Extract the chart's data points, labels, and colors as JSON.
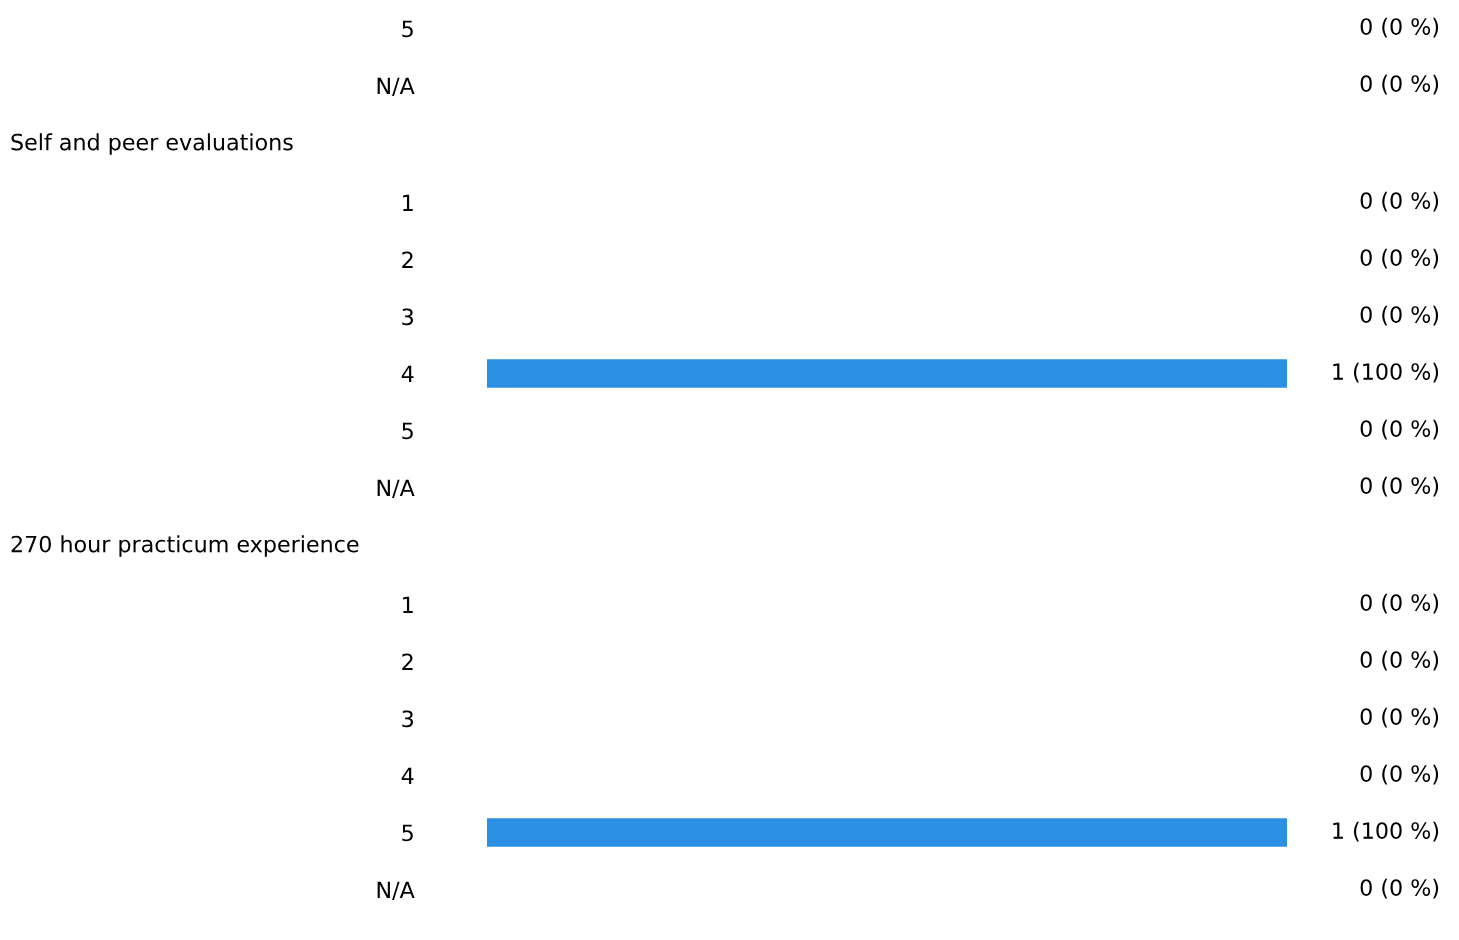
{
  "chart_data": [
    {
      "type": "other",
      "categories": [
        "5",
        "N/A"
      ],
      "values": [
        0,
        0
      ],
      "value_labels": [
        "0 (0 %)",
        "0 (0 %)"
      ]
    },
    {
      "type": "bar",
      "orientation": "horizontal",
      "tick_labels": "y",
      "grid": false,
      "legend": false,
      "color": "#2b8fe3",
      "title": "Self and peer evaluations",
      "categories": [
        "1",
        "2",
        "3",
        "4",
        "5",
        "N/A"
      ],
      "values": [
        0,
        0,
        0,
        1,
        0,
        0
      ],
      "value_labels": [
        "0 (0 %)",
        "0 (0 %)",
        "0 (0 %)",
        "1 (100 %)",
        "0 (0 %)",
        "0 (0 %)"
      ]
    },
    {
      "type": "bar",
      "orientation": "horizontal",
      "tick_labels": "y",
      "grid": false,
      "legend": false,
      "color": "#2b8fe3",
      "title": "270 hour practicum experience",
      "categories": [
        "1",
        "2",
        "3",
        "4",
        "5",
        "N/A"
      ],
      "values": [
        0,
        0,
        0,
        0,
        1,
        0
      ],
      "value_labels": [
        "0 (0 %)",
        "0 (0 %)",
        "0 (0 %)",
        "0 (0 %)",
        "1 (100 %)",
        "0 (0 %)"
      ]
    }
  ]
}
